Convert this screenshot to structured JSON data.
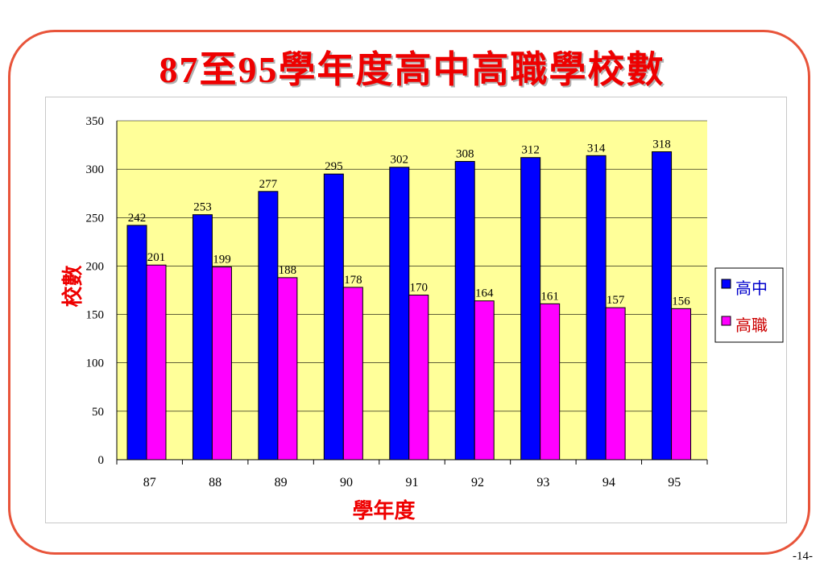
{
  "slide": {
    "title": "87至95學年度高中高職學校數",
    "page_number": "-14-"
  },
  "colors": {
    "plot_background": "#ffff99",
    "frame_border": "#e8543a",
    "title": "#ee0000",
    "axis_title": "#ee0000"
  },
  "chart_data": {
    "type": "bar",
    "title": "87至95學年度高中高職學校數",
    "xlabel": "學年度",
    "ylabel": "校數",
    "categories": [
      "87",
      "88",
      "89",
      "90",
      "91",
      "92",
      "93",
      "94",
      "95"
    ],
    "series": [
      {
        "name": "高中",
        "color": "#0000ff",
        "values": [
          242,
          253,
          277,
          295,
          302,
          308,
          312,
          314,
          318
        ]
      },
      {
        "name": "高職",
        "color": "#ff00ff",
        "values": [
          201,
          199,
          188,
          178,
          170,
          164,
          161,
          157,
          156
        ]
      }
    ],
    "ylim": [
      0,
      350
    ],
    "yticks": [
      0,
      50,
      100,
      150,
      200,
      250,
      300,
      350
    ],
    "grid": true,
    "legend_position": "right"
  }
}
